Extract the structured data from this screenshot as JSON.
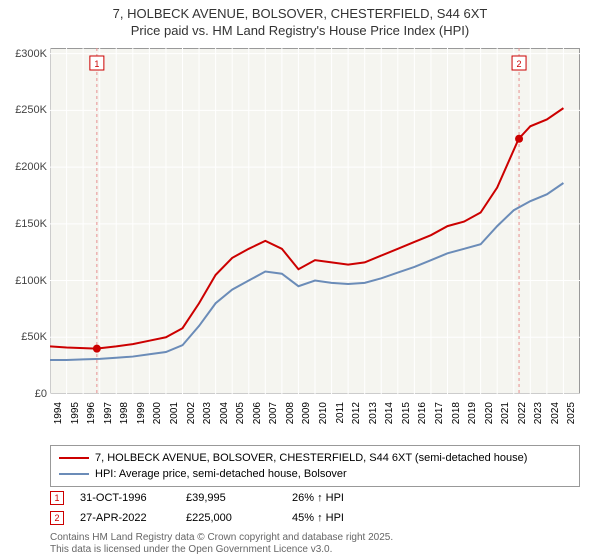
{
  "title": {
    "line1": "7, HOLBECK AVENUE, BOLSOVER, CHESTERFIELD, S44 6XT",
    "line2": "Price paid vs. HM Land Registry's House Price Index (HPI)"
  },
  "chart": {
    "type": "line",
    "background_color": "#f5f5f0",
    "border_color": "#999999",
    "x_axis": {
      "years": [
        1994,
        1995,
        1996,
        1997,
        1998,
        1999,
        2000,
        2001,
        2002,
        2003,
        2004,
        2005,
        2006,
        2007,
        2008,
        2009,
        2010,
        2011,
        2012,
        2013,
        2014,
        2015,
        2016,
        2017,
        2018,
        2019,
        2020,
        2021,
        2022,
        2023,
        2024,
        2025
      ],
      "min_year": 1994,
      "max_year": 2026
    },
    "y_axis": {
      "min": 0,
      "max": 305000,
      "ticks": [
        0,
        50000,
        100000,
        150000,
        200000,
        250000,
        300000
      ],
      "tick_labels": [
        "£0",
        "£50K",
        "£100K",
        "£150K",
        "£200K",
        "£250K",
        "£300K"
      ]
    },
    "series": [
      {
        "name": "price_paid",
        "label": "7, HOLBECK AVENUE, BOLSOVER, CHESTERFIELD, S44 6XT (semi-detached house)",
        "color": "#cc0000",
        "line_width": 2,
        "points": [
          [
            1994,
            42000
          ],
          [
            1995,
            41000
          ],
          [
            1996.8,
            39995
          ],
          [
            1998,
            42000
          ],
          [
            1999,
            44000
          ],
          [
            2000,
            47000
          ],
          [
            2001,
            50000
          ],
          [
            2002,
            58000
          ],
          [
            2003,
            80000
          ],
          [
            2004,
            105000
          ],
          [
            2005,
            120000
          ],
          [
            2006,
            128000
          ],
          [
            2007,
            135000
          ],
          [
            2008,
            128000
          ],
          [
            2009,
            110000
          ],
          [
            2010,
            118000
          ],
          [
            2011,
            116000
          ],
          [
            2012,
            114000
          ],
          [
            2013,
            116000
          ],
          [
            2014,
            122000
          ],
          [
            2015,
            128000
          ],
          [
            2016,
            134000
          ],
          [
            2017,
            140000
          ],
          [
            2018,
            148000
          ],
          [
            2019,
            152000
          ],
          [
            2020,
            160000
          ],
          [
            2021,
            182000
          ],
          [
            2022.3,
            225000
          ],
          [
            2023,
            236000
          ],
          [
            2024,
            242000
          ],
          [
            2025,
            252000
          ]
        ]
      },
      {
        "name": "hpi",
        "label": "HPI: Average price, semi-detached house, Bolsover",
        "color": "#6b8cb8",
        "line_width": 2,
        "points": [
          [
            1994,
            30000
          ],
          [
            1995,
            30000
          ],
          [
            1996,
            30500
          ],
          [
            1997,
            31000
          ],
          [
            1998,
            32000
          ],
          [
            1999,
            33000
          ],
          [
            2000,
            35000
          ],
          [
            2001,
            37000
          ],
          [
            2002,
            43000
          ],
          [
            2003,
            60000
          ],
          [
            2004,
            80000
          ],
          [
            2005,
            92000
          ],
          [
            2006,
            100000
          ],
          [
            2007,
            108000
          ],
          [
            2008,
            106000
          ],
          [
            2009,
            95000
          ],
          [
            2010,
            100000
          ],
          [
            2011,
            98000
          ],
          [
            2012,
            97000
          ],
          [
            2013,
            98000
          ],
          [
            2014,
            102000
          ],
          [
            2015,
            107000
          ],
          [
            2016,
            112000
          ],
          [
            2017,
            118000
          ],
          [
            2018,
            124000
          ],
          [
            2019,
            128000
          ],
          [
            2020,
            132000
          ],
          [
            2021,
            148000
          ],
          [
            2022,
            162000
          ],
          [
            2023,
            170000
          ],
          [
            2024,
            176000
          ],
          [
            2025,
            186000
          ]
        ]
      }
    ],
    "events": [
      {
        "id": "1",
        "date_label": "31-OCT-1996",
        "year": 1996.83,
        "price_label": "£39,995",
        "price": 39995,
        "pct_label": "26% ↑ HPI",
        "color": "#cc0000"
      },
      {
        "id": "2",
        "date_label": "27-APR-2022",
        "year": 2022.32,
        "price_label": "£225,000",
        "price": 225000,
        "pct_label": "45% ↑ HPI",
        "color": "#cc0000"
      }
    ],
    "event_line_color": "#e89090",
    "event_line_dash": "3,3"
  },
  "credit": {
    "line1": "Contains HM Land Registry data © Crown copyright and database right 2025.",
    "line2": "This data is licensed under the Open Government Licence v3.0."
  }
}
